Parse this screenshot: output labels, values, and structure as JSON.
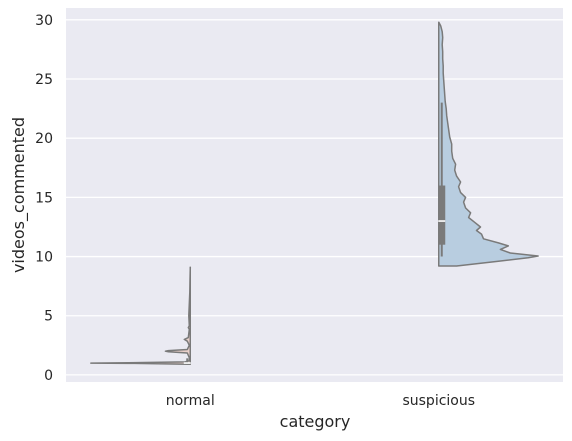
{
  "chart_data": {
    "type": "violin",
    "title": "",
    "xlabel": "category",
    "ylabel": "videos_commented",
    "categories": [
      "normal",
      "suspicious"
    ],
    "ylim": [
      -0.6,
      31
    ],
    "yticks": [
      0,
      5,
      10,
      15,
      20,
      25,
      30
    ],
    "grid": true,
    "legend": "none",
    "colors": {
      "background": "#eaeaf2",
      "grid": "#ffffff",
      "outline": "#7a7a7a",
      "box": "#7a7a7a",
      "median": "#ffffff",
      "normal_fill": "#e8cfc9",
      "suspicious_fill": "#b8cde0"
    },
    "series": [
      {
        "category": "normal",
        "side": "left",
        "range": [
          0.9,
          9.1
        ],
        "density": [
          [
            0.9,
            0.02
          ],
          [
            0.97,
            0.56
          ],
          [
            1.0,
            1.0
          ],
          [
            1.03,
            0.62
          ],
          [
            1.1,
            0.05
          ],
          [
            1.2,
            0.01
          ],
          [
            1.45,
            0.01
          ],
          [
            1.85,
            0.03
          ],
          [
            1.95,
            0.22
          ],
          [
            2.0,
            0.25
          ],
          [
            2.05,
            0.22
          ],
          [
            2.15,
            0.03
          ],
          [
            2.5,
            0.01
          ],
          [
            2.85,
            0.03
          ],
          [
            3.0,
            0.06
          ],
          [
            3.15,
            0.02
          ],
          [
            3.85,
            0.01
          ],
          [
            4.0,
            0.02
          ],
          [
            4.15,
            0.01
          ],
          [
            5.0,
            0.015
          ],
          [
            6.0,
            0.01
          ],
          [
            7.0,
            0.005
          ],
          [
            8.0,
            0.003
          ],
          [
            9.1,
            0.0
          ]
        ],
        "box": {
          "q1": 1.0,
          "median": 1.0,
          "q3": 1.0,
          "whisker_low": 0.9,
          "whisker_high": 1.4
        }
      },
      {
        "category": "suspicious",
        "side": "right",
        "range": [
          9.2,
          29.8
        ],
        "density": [
          [
            9.2,
            0.18
          ],
          [
            9.6,
            0.6
          ],
          [
            9.9,
            0.9
          ],
          [
            10.05,
            1.0
          ],
          [
            10.3,
            0.72
          ],
          [
            10.6,
            0.62
          ],
          [
            10.9,
            0.7
          ],
          [
            11.15,
            0.6
          ],
          [
            11.5,
            0.45
          ],
          [
            11.9,
            0.43
          ],
          [
            12.2,
            0.38
          ],
          [
            12.5,
            0.42
          ],
          [
            12.9,
            0.36
          ],
          [
            13.3,
            0.3
          ],
          [
            13.7,
            0.32
          ],
          [
            14.1,
            0.27
          ],
          [
            14.6,
            0.25
          ],
          [
            15.0,
            0.27
          ],
          [
            15.4,
            0.22
          ],
          [
            15.9,
            0.2
          ],
          [
            16.3,
            0.22
          ],
          [
            16.8,
            0.18
          ],
          [
            17.3,
            0.16
          ],
          [
            17.8,
            0.17
          ],
          [
            18.3,
            0.14
          ],
          [
            18.9,
            0.13
          ],
          [
            19.5,
            0.13
          ],
          [
            20.1,
            0.11
          ],
          [
            20.7,
            0.1
          ],
          [
            21.3,
            0.09
          ],
          [
            21.9,
            0.08
          ],
          [
            22.5,
            0.075
          ],
          [
            23.1,
            0.065
          ],
          [
            23.7,
            0.06
          ],
          [
            24.3,
            0.055
          ],
          [
            24.9,
            0.05
          ],
          [
            25.5,
            0.045
          ],
          [
            26.1,
            0.045
          ],
          [
            26.7,
            0.04
          ],
          [
            27.3,
            0.04
          ],
          [
            27.9,
            0.035
          ],
          [
            28.5,
            0.04
          ],
          [
            29.0,
            0.035
          ],
          [
            29.5,
            0.02
          ],
          [
            29.8,
            0.0
          ]
        ],
        "box": {
          "q1": 11.0,
          "median": 13.0,
          "q3": 16.0,
          "whisker_low": 10.0,
          "whisker_high": 23.0
        }
      }
    ]
  }
}
